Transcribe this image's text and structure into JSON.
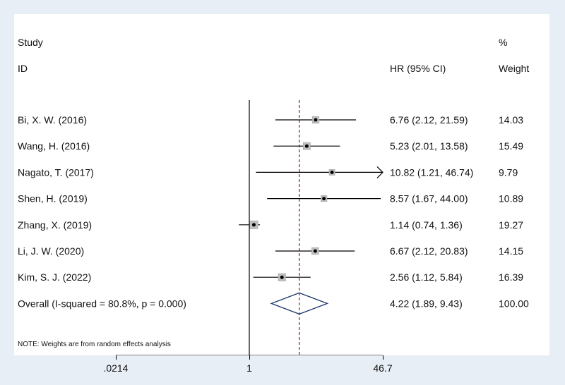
{
  "chart_data": {
    "type": "forest",
    "columns": {
      "study_header_line1": "Study",
      "study_header_line2": "ID",
      "effect_header": "HR (95% CI)",
      "weight_header_line1": "%",
      "weight_header_line2": "Weight"
    },
    "studies": [
      {
        "label": "Bi, X. W. (2016)",
        "hr": 6.76,
        "lo": 2.12,
        "hi": 21.59,
        "ci_text": "6.76 (2.12, 21.59)",
        "weight": 14.03,
        "weight_text": "14.03"
      },
      {
        "label": "Wang, H. (2016)",
        "hr": 5.23,
        "lo": 2.01,
        "hi": 13.58,
        "ci_text": "5.23 (2.01, 13.58)",
        "weight": 15.49,
        "weight_text": "15.49"
      },
      {
        "label": "Nagato, T. (2017)",
        "hr": 10.82,
        "lo": 1.21,
        "hi": 46.74,
        "ci_text": "10.82 (1.21, 46.74)",
        "weight": 9.79,
        "weight_text": "9.79",
        "arrow_right": true
      },
      {
        "label": "Shen, H. (2019)",
        "hr": 8.57,
        "lo": 1.67,
        "hi": 44.0,
        "ci_text": "8.57 (1.67, 44.00)",
        "weight": 10.89,
        "weight_text": "10.89"
      },
      {
        "label": "Zhang, X. (2019)",
        "hr": 1.14,
        "lo": 0.74,
        "hi": 1.36,
        "ci_text": "1.14 (0.74, 1.36)",
        "weight": 19.27,
        "weight_text": "19.27"
      },
      {
        "label": "Li, J. W. (2020)",
        "hr": 6.67,
        "lo": 2.12,
        "hi": 20.83,
        "ci_text": "6.67 (2.12, 20.83)",
        "weight": 14.15,
        "weight_text": "14.15"
      },
      {
        "label": "Kim, S. J. (2022)",
        "hr": 2.56,
        "lo": 1.12,
        "hi": 5.84,
        "ci_text": "2.56 (1.12, 5.84)",
        "weight": 16.39,
        "weight_text": "16.39"
      }
    ],
    "overall": {
      "label": "Overall  (I-squared = 80.8%, p = 0.000)",
      "hr": 4.22,
      "lo": 1.89,
      "hi": 9.43,
      "ci_text": "4.22 (1.89, 9.43)",
      "weight_text": "100.00"
    },
    "note": "NOTE: Weights are from random effects analysis",
    "x_axis": {
      "scale": "log",
      "range": [
        0.0214,
        46.7
      ],
      "ticks": [
        0.0214,
        1,
        46.7
      ],
      "tick_labels": [
        ".0214",
        "1",
        "46.7"
      ],
      "null_line": 1
    }
  },
  "colors": {
    "background": "#e8eef5",
    "panel": "#ffffff",
    "reference_line": "#8b1a1a",
    "diamond": "#1f3a6e",
    "box": "#bfbfbf",
    "ink": "#000000"
  }
}
